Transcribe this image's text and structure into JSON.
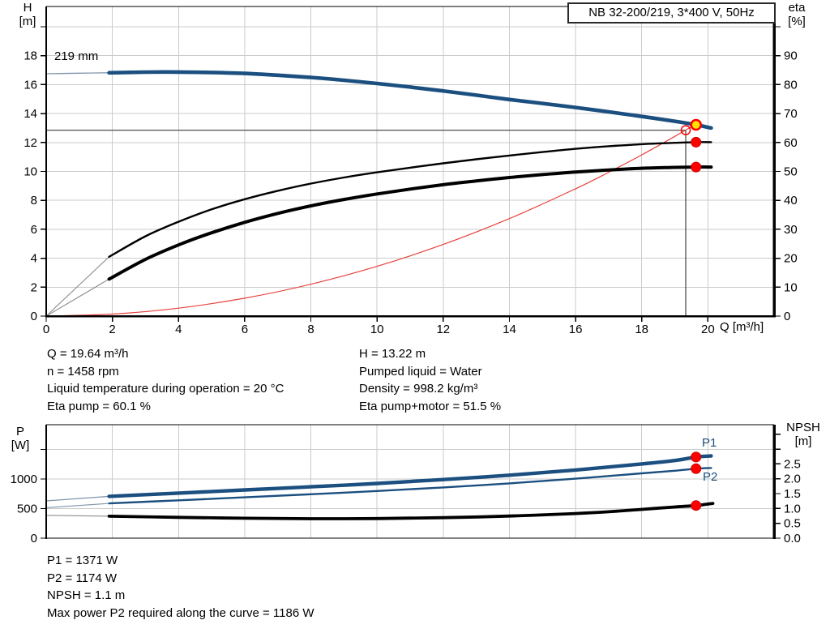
{
  "title_box": "NB 32-200/219, 3*400 V, 50Hz",
  "top_chart": {
    "impeller_label": "219 mm",
    "left_axis_title": [
      "H",
      "[m]"
    ],
    "right_axis_title": [
      "eta",
      "[%]"
    ],
    "x_axis_title": "Q [m³/h]"
  },
  "bottom_chart": {
    "left_axis_title": [
      "P",
      "[W]"
    ],
    "right_axis_title": [
      "NPSH",
      "[m]"
    ],
    "p1_label": "P1",
    "p2_label": "P2"
  },
  "operating_info": {
    "left": [
      "Q = 19.64 m³/h",
      "n = 1458 rpm",
      "Liquid temperature during operation = 20 °C",
      "Eta pump = 60.1 %"
    ],
    "right": [
      "H = 13.22 m",
      "Pumped liquid = Water",
      "Density = 998.2 kg/m³",
      "Eta pump+motor = 51.5 %"
    ]
  },
  "power_info": [
    "P1 = 1371 W",
    "P2 = 1174 W",
    "NPSH = 1.1 m",
    "Max power P2 required along the curve = 1186 W"
  ],
  "colors": {
    "curve_blue": "#1b4f7f",
    "curve_black": "#000000",
    "lead_blue": "#7e93aa",
    "lead_gray": "#8c8c8c",
    "system_red": "#e8413c",
    "marker_red": "#fe0000",
    "marker_red_edge": "#cc0000",
    "duty_yellow": "#ffe400",
    "grid": "#cbcbcb",
    "guide_gray": "#4d4d4d",
    "guide_black": "#1a1a1a",
    "frame": "#000000"
  },
  "chart_data": [
    {
      "id": "qh",
      "type": "line",
      "title": "NB 32-200/219, 3*400 V, 50Hz",
      "x_axis": {
        "label": "Q [m³/h]",
        "min": 0,
        "max": 22,
        "tick_values": [
          0,
          2,
          4,
          6,
          8,
          10,
          12,
          14,
          16,
          18,
          20
        ],
        "tick_labels": [
          "0",
          "2",
          "4",
          "6",
          "8",
          "10",
          "12",
          "14",
          "16",
          "18",
          "20"
        ]
      },
      "y_left": {
        "label": "H [m]",
        "min": 0,
        "max": 21.4,
        "tick_values": [
          0,
          2,
          4,
          6,
          8,
          10,
          12,
          14,
          16,
          18,
          20
        ],
        "tick_labels": [
          "0",
          "2",
          "4",
          "6",
          "8",
          "10",
          "12",
          "14",
          "16",
          "18",
          ""
        ]
      },
      "y_right": {
        "label": "eta [%]",
        "min": 0,
        "max": 107,
        "tick_values": [
          0,
          10,
          20,
          30,
          40,
          50,
          60,
          70,
          80,
          90,
          100
        ],
        "tick_labels": [
          "0",
          "10",
          "20",
          "30",
          "40",
          "50",
          "60",
          "70",
          "80",
          "90",
          ""
        ]
      },
      "grid": {
        "x": [
          2,
          4,
          6,
          8,
          10,
          12,
          14,
          16,
          18,
          20
        ],
        "y_left": [
          2,
          4,
          6,
          8,
          10,
          12,
          14,
          16,
          18,
          20
        ]
      },
      "guides": {
        "h_value": 12.85,
        "h_end_q": 19.33,
        "v_q": 19.33
      },
      "annotations": {
        "impeller": "219 mm",
        "duty_point": {
          "q": 19.64,
          "h": 13.22
        },
        "requested_point": {
          "q": 19.33,
          "h": 12.85
        }
      },
      "series": [
        {
          "name": "qh-lead",
          "axis": "left",
          "color": "lead_blue",
          "width": 1.3,
          "points": [
            [
              0,
              16.75
            ],
            [
              1,
              16.79
            ],
            [
              1.9,
              16.82
            ]
          ]
        },
        {
          "name": "system-curve",
          "axis": "left",
          "color": "system_red",
          "width": 1.2,
          "points": [
            [
              0,
              0
            ],
            [
              2,
              0.14
            ],
            [
              4,
              0.55
            ],
            [
              6,
              1.24
            ],
            [
              8,
              2.2
            ],
            [
              10,
              3.44
            ],
            [
              12,
              4.95
            ],
            [
              14,
              6.74
            ],
            [
              16,
              8.8
            ],
            [
              17,
              9.94
            ],
            [
              18,
              11.14
            ],
            [
              19,
              12.42
            ],
            [
              19.6,
              13.21
            ]
          ]
        },
        {
          "name": "eta-pump-lead",
          "axis": "right",
          "color": "lead_gray",
          "width": 1.1,
          "points": [
            [
              0,
              0
            ],
            [
              1.9,
              20.5
            ]
          ]
        },
        {
          "name": "eta-pump-motor-lead",
          "axis": "right",
          "color": "lead_gray",
          "width": 1.1,
          "points": [
            [
              0,
              0
            ],
            [
              1.9,
              12.8
            ]
          ]
        },
        {
          "name": "eta-pump",
          "axis": "right",
          "color": "curve_black",
          "width": 2.4,
          "points": [
            [
              1.9,
              20.5
            ],
            [
              3,
              27.6
            ],
            [
              4,
              32.6
            ],
            [
              5,
              36.9
            ],
            [
              6,
              40.4
            ],
            [
              7,
              43.3
            ],
            [
              8,
              45.8
            ],
            [
              9,
              47.9
            ],
            [
              10,
              49.7
            ],
            [
              11,
              51.3
            ],
            [
              12,
              52.8
            ],
            [
              13,
              54.2
            ],
            [
              14,
              55.5
            ],
            [
              15,
              56.7
            ],
            [
              16,
              57.8
            ],
            [
              17,
              58.7
            ],
            [
              18,
              59.4
            ],
            [
              19,
              59.9
            ],
            [
              19.64,
              60.1
            ],
            [
              20.1,
              60.1
            ]
          ]
        },
        {
          "name": "eta-pump-motor",
          "axis": "right",
          "color": "curve_black",
          "width": 4,
          "points": [
            [
              1.9,
              12.8
            ],
            [
              3,
              19.6
            ],
            [
              4,
              24.6
            ],
            [
              5,
              28.8
            ],
            [
              6,
              32.4
            ],
            [
              7,
              35.5
            ],
            [
              8,
              38.1
            ],
            [
              9,
              40.3
            ],
            [
              10,
              42.2
            ],
            [
              11,
              43.9
            ],
            [
              12,
              45.4
            ],
            [
              13,
              46.7
            ],
            [
              14,
              47.9
            ],
            [
              15,
              48.9
            ],
            [
              16,
              49.8
            ],
            [
              17,
              50.5
            ],
            [
              18,
              51.1
            ],
            [
              19,
              51.4
            ],
            [
              19.64,
              51.5
            ],
            [
              20.1,
              51.5
            ]
          ]
        },
        {
          "name": "qh-curve",
          "axis": "left",
          "color": "curve_blue",
          "width": 4.6,
          "points": [
            [
              1.9,
              16.82
            ],
            [
              3,
              16.86
            ],
            [
              4,
              16.87
            ],
            [
              5,
              16.84
            ],
            [
              6,
              16.77
            ],
            [
              7,
              16.65
            ],
            [
              8,
              16.5
            ],
            [
              9,
              16.3
            ],
            [
              10,
              16.08
            ],
            [
              11,
              15.83
            ],
            [
              12,
              15.56
            ],
            [
              13,
              15.27
            ],
            [
              14,
              14.97
            ],
            [
              15,
              14.7
            ],
            [
              16,
              14.42
            ],
            [
              17,
              14.12
            ],
            [
              18,
              13.8
            ],
            [
              19,
              13.47
            ],
            [
              19.64,
              13.22
            ],
            [
              20.1,
              13.0
            ]
          ]
        }
      ],
      "markers": [
        {
          "shape": "open",
          "axis": "left",
          "q": 19.33,
          "v": 12.85
        },
        {
          "shape": "dot",
          "axis": "right",
          "q": 19.64,
          "v": 60.1
        },
        {
          "shape": "dot",
          "axis": "right",
          "q": 19.64,
          "v": 51.5
        },
        {
          "shape": "duty",
          "axis": "left",
          "q": 19.64,
          "v": 13.22
        }
      ]
    },
    {
      "id": "power",
      "type": "line",
      "title": "Power and NPSH",
      "x_axis": {
        "label": "Q [m³/h]",
        "min": 0,
        "max": 22,
        "tick_values": [],
        "tick_labels": []
      },
      "y_left": {
        "label": "P [W]",
        "min": 0,
        "max": 1918,
        "tick_values": [
          0,
          500,
          1000,
          1500
        ],
        "tick_labels": [
          "0",
          "500",
          "1000",
          ""
        ]
      },
      "y_right": {
        "label": "NPSH [m]",
        "min": 0,
        "max": 3.82,
        "tick_values": [
          0,
          0.5,
          1,
          1.5,
          2,
          2.5,
          3,
          3.5
        ],
        "tick_labels": [
          "0.0",
          "0.5",
          "1.0",
          "1.5",
          "2.0",
          "2.5",
          "",
          ""
        ]
      },
      "grid": {
        "x": [
          2,
          4,
          6,
          8,
          10,
          12,
          14,
          16,
          18,
          20
        ],
        "y_left": [
          500,
          1000,
          1500
        ]
      },
      "series": [
        {
          "name": "p1-lead",
          "axis": "left",
          "color": "lead_blue",
          "width": 1.3,
          "points": [
            [
              0,
              630
            ],
            [
              1.9,
              707
            ]
          ]
        },
        {
          "name": "p2-lead",
          "axis": "left",
          "color": "lead_blue",
          "width": 1.1,
          "points": [
            [
              0,
              515
            ],
            [
              1.9,
              588
            ]
          ]
        },
        {
          "name": "npsh-lead",
          "axis": "right",
          "color": "lead_gray",
          "width": 1.1,
          "points": [
            [
              0,
              0.77
            ],
            [
              1.9,
              0.74
            ]
          ]
        },
        {
          "name": "p1-curve",
          "axis": "left",
          "color": "curve_blue",
          "width": 4.4,
          "points": [
            [
              1.9,
              707
            ],
            [
              4,
              762
            ],
            [
              6,
              815
            ],
            [
              8,
              868
            ],
            [
              10,
              925
            ],
            [
              12,
              990
            ],
            [
              14,
              1065
            ],
            [
              16,
              1152
            ],
            [
              18,
              1255
            ],
            [
              19,
              1312
            ],
            [
              19.64,
              1371
            ],
            [
              20.1,
              1390
            ]
          ]
        },
        {
          "name": "p2-curve",
          "axis": "left",
          "color": "curve_blue",
          "width": 2.4,
          "points": [
            [
              1.9,
              588
            ],
            [
              4,
              640
            ],
            [
              6,
              690
            ],
            [
              8,
              742
            ],
            [
              10,
              797
            ],
            [
              12,
              858
            ],
            [
              14,
              926
            ],
            [
              16,
              1005
            ],
            [
              18,
              1096
            ],
            [
              19,
              1140
            ],
            [
              19.64,
              1174
            ],
            [
              20.1,
              1186
            ]
          ]
        },
        {
          "name": "npsh-curve",
          "axis": "right",
          "color": "curve_black",
          "width": 3.8,
          "points": [
            [
              1.9,
              0.74
            ],
            [
              4,
              0.7
            ],
            [
              6,
              0.67
            ],
            [
              8,
              0.655
            ],
            [
              10,
              0.66
            ],
            [
              12,
              0.69
            ],
            [
              14,
              0.745
            ],
            [
              16,
              0.83
            ],
            [
              17,
              0.89
            ],
            [
              18,
              0.97
            ],
            [
              19,
              1.05
            ],
            [
              19.64,
              1.1
            ],
            [
              20.15,
              1.17
            ]
          ]
        }
      ],
      "markers": [
        {
          "shape": "dot",
          "axis": "left",
          "q": 19.64,
          "v": 1371
        },
        {
          "shape": "dot",
          "axis": "left",
          "q": 19.64,
          "v": 1174
        },
        {
          "shape": "dot",
          "axis": "right",
          "q": 19.64,
          "v": 1.1
        }
      ]
    }
  ]
}
